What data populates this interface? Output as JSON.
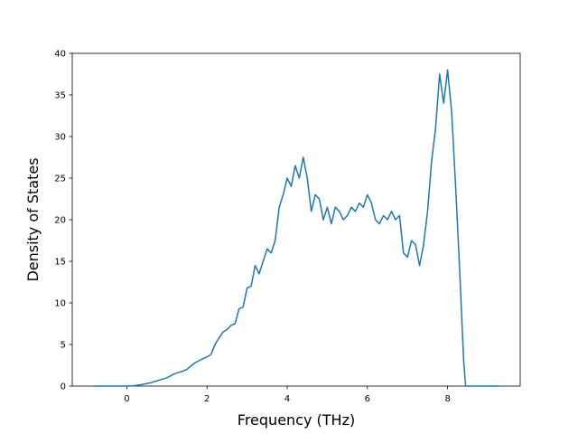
{
  "chart_data": {
    "type": "line",
    "xlabel": "Frequency (THz)",
    "ylabel": "Density of States",
    "x": [
      -0.85,
      0,
      0.2,
      0.4,
      0.6,
      0.8,
      1.0,
      1.2,
      1.4,
      1.5,
      1.7,
      1.9,
      2.0,
      2.1,
      2.2,
      2.3,
      2.4,
      2.5,
      2.6,
      2.7,
      2.8,
      2.9,
      3.0,
      3.1,
      3.2,
      3.3,
      3.4,
      3.5,
      3.6,
      3.7,
      3.8,
      3.9,
      4.0,
      4.1,
      4.2,
      4.3,
      4.4,
      4.5,
      4.6,
      4.7,
      4.8,
      4.9,
      5.0,
      5.1,
      5.2,
      5.3,
      5.4,
      5.5,
      5.6,
      5.7,
      5.8,
      5.9,
      6.0,
      6.1,
      6.2,
      6.3,
      6.4,
      6.5,
      6.6,
      6.7,
      6.8,
      6.9,
      7.0,
      7.1,
      7.2,
      7.3,
      7.4,
      7.5,
      7.6,
      7.7,
      7.8,
      7.9,
      8.0,
      8.1,
      8.2,
      8.3,
      8.4,
      8.45,
      9.3
    ],
    "series": [
      {
        "color": "#1f77b4",
        "values": [
          0,
          0,
          0.05,
          0.2,
          0.4,
          0.7,
          1.0,
          1.5,
          1.8,
          2.0,
          2.8,
          3.3,
          3.5,
          3.8,
          5.0,
          5.8,
          6.5,
          6.8,
          7.3,
          7.5,
          9.3,
          9.5,
          11.8,
          12.0,
          14.5,
          13.5,
          15.0,
          16.5,
          16.0,
          17.5,
          21.5,
          23.0,
          25.0,
          24.0,
          26.5,
          25.0,
          27.5,
          25.0,
          21.0,
          23.0,
          22.5,
          20.0,
          21.5,
          19.5,
          21.5,
          21.0,
          20.0,
          20.5,
          21.5,
          21.0,
          22.0,
          21.5,
          23.0,
          22.0,
          20.0,
          19.5,
          20.5,
          20.0,
          21.0,
          20.0,
          20.5,
          16.0,
          15.5,
          17.5,
          17.0,
          14.5,
          17.0,
          21.0,
          27.0,
          31.0,
          37.5,
          34.0,
          38.0,
          33.0,
          24.0,
          14.0,
          3.0,
          0,
          0
        ]
      }
    ],
    "xlim": [
      -1.36,
      9.81
    ],
    "ylim": [
      0,
      40
    ],
    "xticks": [
      0,
      2,
      4,
      6,
      8
    ],
    "yticks": [
      0,
      5,
      10,
      15,
      20,
      25,
      30,
      35,
      40
    ]
  }
}
